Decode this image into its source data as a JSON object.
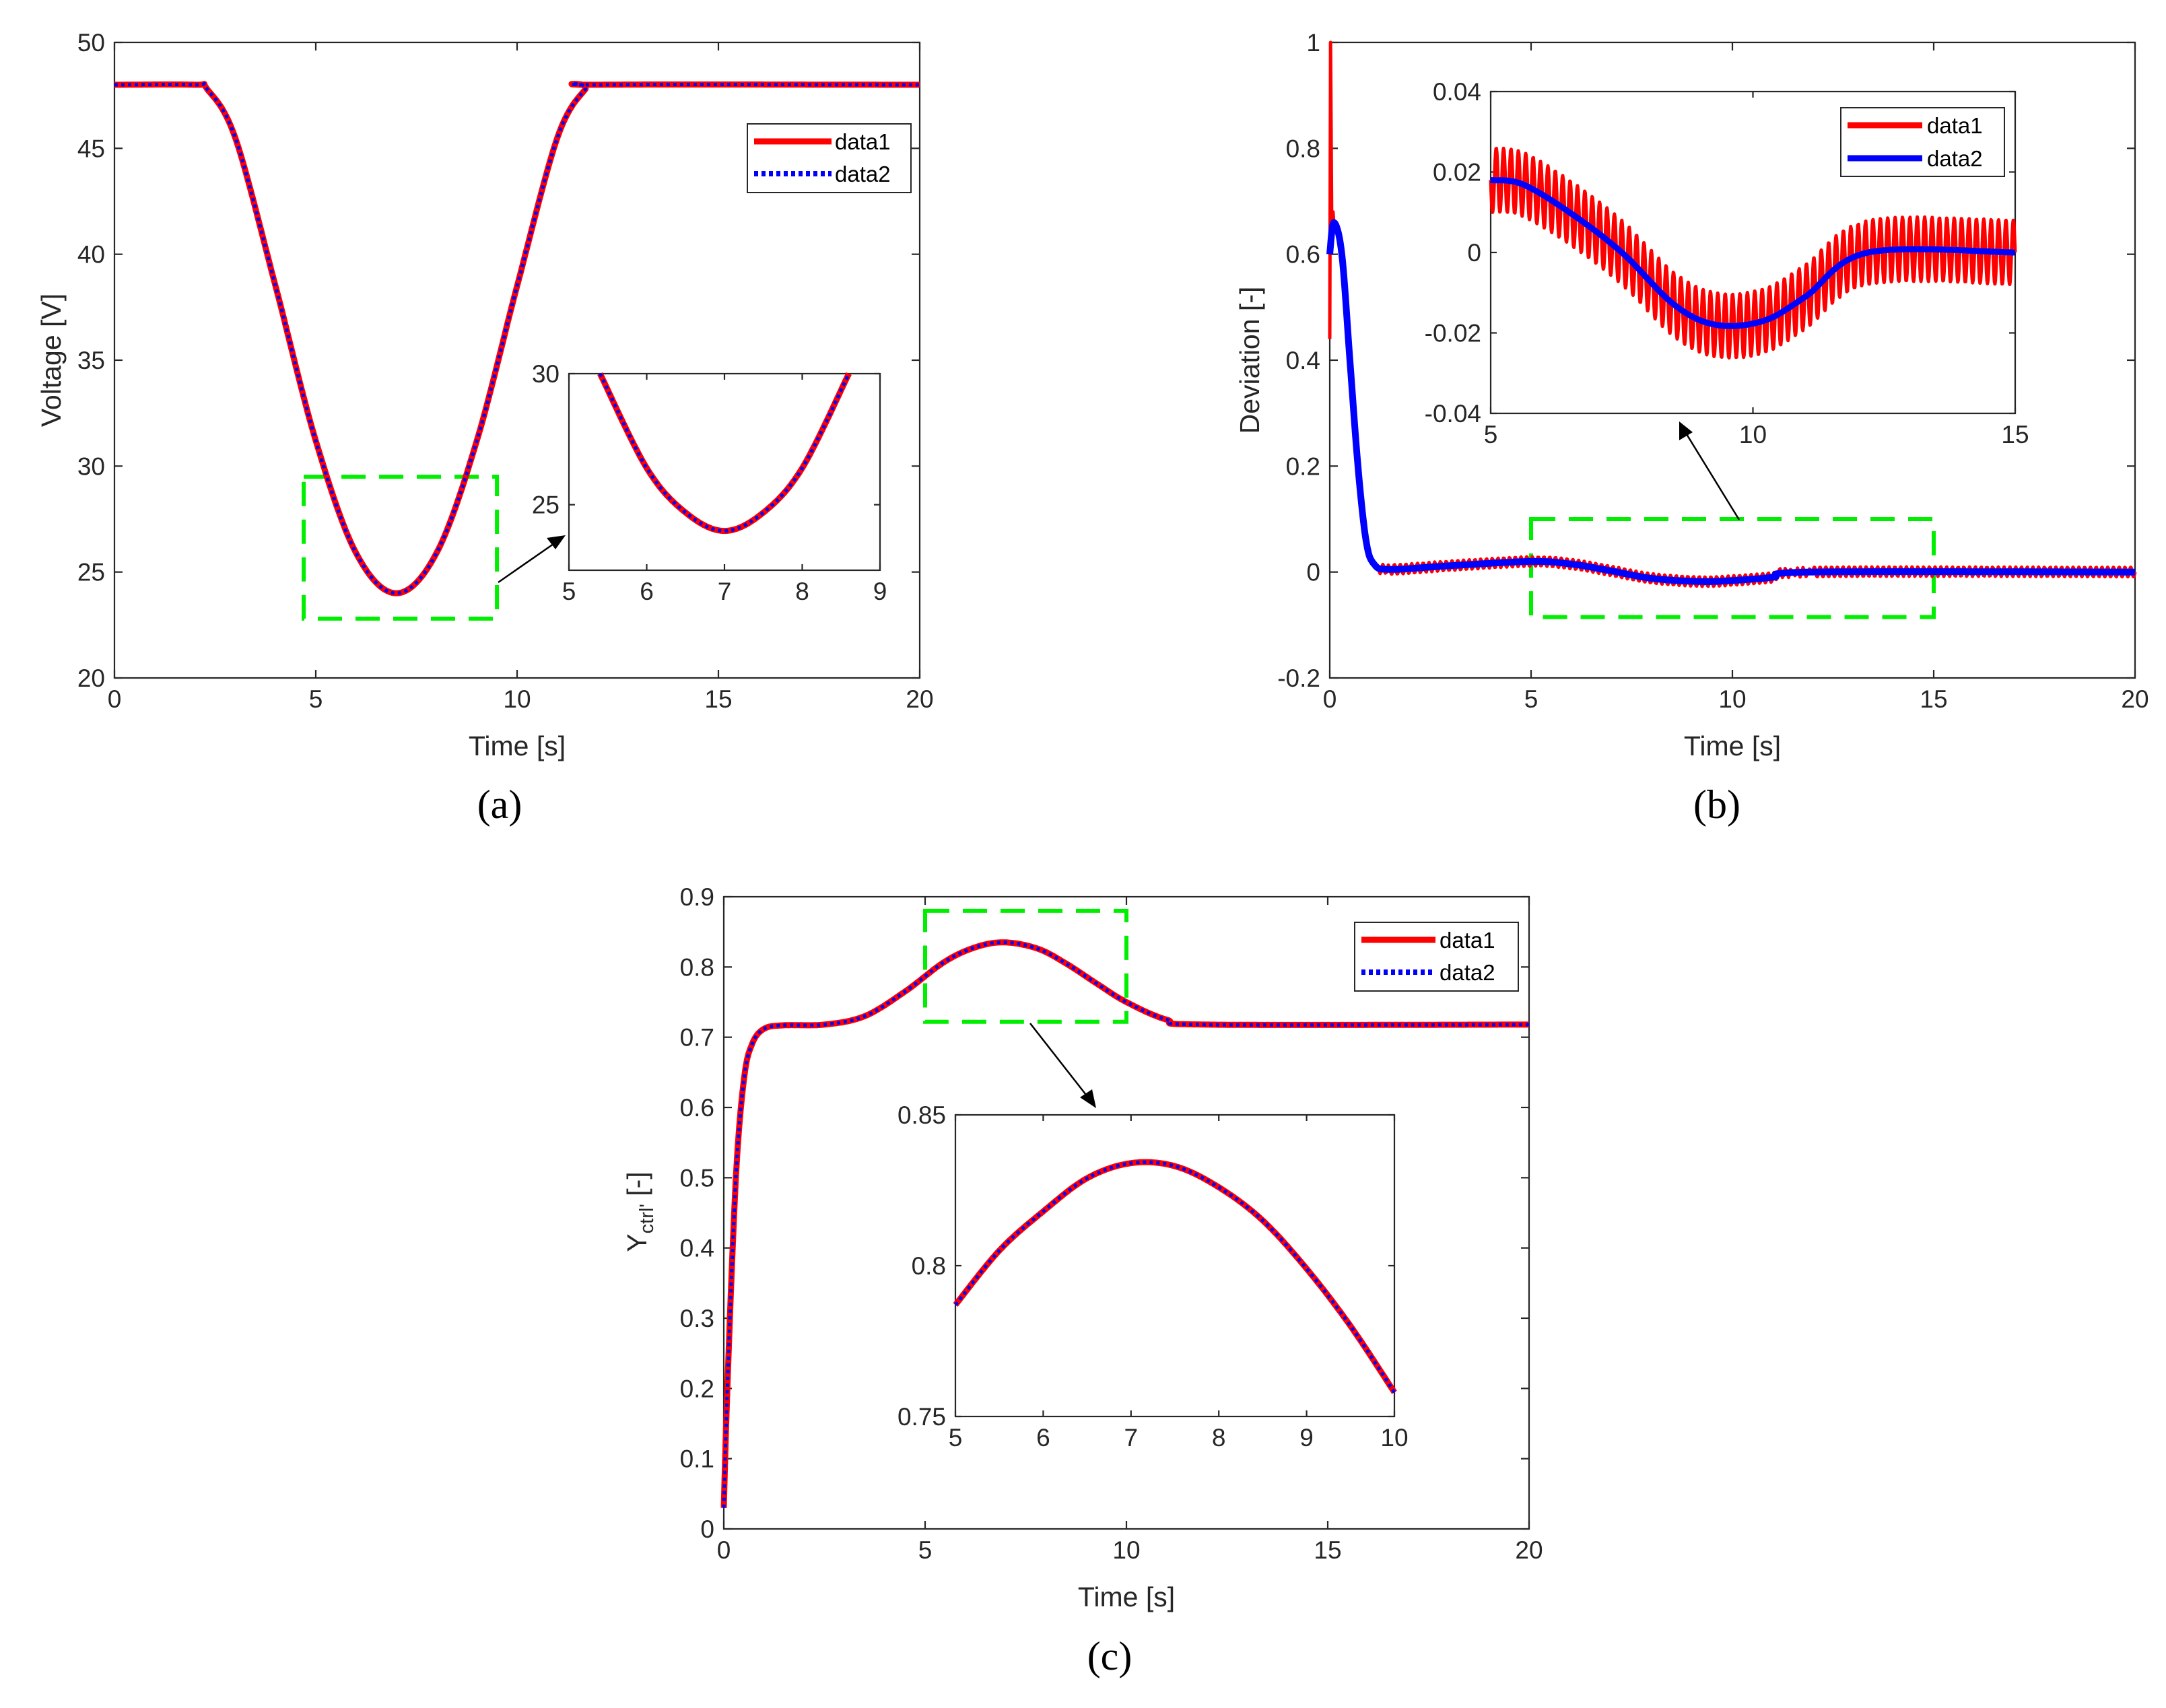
{
  "colors": {
    "data1": "#ff0000",
    "data2": "#0000ff",
    "zoom_box": "#00ee00",
    "axes": "#262626"
  },
  "chart_data": [
    {
      "id": "a",
      "caption": "(a)",
      "type": "line",
      "xlabel": "Time [s]",
      "ylabel": "Voltage [V]",
      "xlim": [
        0,
        20
      ],
      "ylim": [
        20,
        50
      ],
      "xticks": [
        "0",
        "5",
        "10",
        "15",
        "20"
      ],
      "yticks": [
        "20",
        "25",
        "30",
        "35",
        "40",
        "45",
        "50"
      ],
      "legend": [
        "data1",
        "data2"
      ],
      "legend_position": "top-right",
      "series": [
        {
          "name": "data1",
          "style": "solid"
        },
        {
          "name": "data2",
          "style": "dotted"
        }
      ],
      "curve_points": [
        [
          0,
          48
        ],
        [
          2,
          48
        ],
        [
          2.3,
          47.8
        ],
        [
          3,
          45.5
        ],
        [
          4,
          38.5
        ],
        [
          5,
          31.2
        ],
        [
          6,
          25.9
        ],
        [
          7,
          24
        ],
        [
          8,
          25.9
        ],
        [
          9,
          31.2
        ],
        [
          10,
          38.5
        ],
        [
          11,
          45.5
        ],
        [
          11.7,
          47.8
        ],
        [
          12,
          48
        ],
        [
          20,
          48
        ]
      ],
      "zoom_box": {
        "x": [
          4.7,
          9.5
        ],
        "y": [
          22.8,
          29.5
        ]
      },
      "inset": {
        "xlim": [
          5,
          9
        ],
        "ylim": [
          22.5,
          30
        ],
        "xticks": [
          "5",
          "6",
          "7",
          "8",
          "9"
        ],
        "yticks": [
          "25",
          "30"
        ],
        "curve_points": [
          [
            5.4,
            30
          ],
          [
            6,
            26.4
          ],
          [
            6.5,
            24.7
          ],
          [
            7,
            24
          ],
          [
            7.5,
            24.7
          ],
          [
            8,
            26.4
          ],
          [
            8.6,
            30
          ]
        ]
      }
    },
    {
      "id": "b",
      "caption": "(b)",
      "type": "line",
      "xlabel": "Time [s]",
      "ylabel": "Deviation [-]",
      "xlim": [
        0,
        20
      ],
      "ylim": [
        -0.2,
        1
      ],
      "xticks": [
        "0",
        "5",
        "10",
        "15",
        "20"
      ],
      "yticks": [
        "-0.2",
        "0",
        "0.2",
        "0.4",
        "0.6",
        "0.8",
        "1"
      ],
      "legend": [
        "data1",
        "data2"
      ],
      "legend_position": "inset top-right",
      "series": [
        {
          "name": "data1",
          "style": "oscillating"
        },
        {
          "name": "data2",
          "style": "solid"
        }
      ],
      "curve_points": [
        [
          0,
          0.6
        ],
        [
          0.1,
          0.66
        ],
        [
          0.3,
          0.6
        ],
        [
          0.5,
          0.4
        ],
        [
          0.7,
          0.2
        ],
        [
          0.9,
          0.06
        ],
        [
          1.1,
          0.015
        ],
        [
          1.5,
          0.005
        ],
        [
          3,
          0.012
        ],
        [
          5,
          0.02
        ],
        [
          6,
          0.015
        ],
        [
          7,
          0.002
        ],
        [
          8,
          -0.012
        ],
        [
          9.2,
          -0.018
        ],
        [
          10,
          -0.016
        ],
        [
          11,
          -0.01
        ],
        [
          12,
          0
        ],
        [
          20,
          0
        ]
      ],
      "data1_extras": {
        "spike_max": 1,
        "spike_min": 0.44,
        "oscillation_amplitude": 0.009
      },
      "zoom_box": {
        "x": [
          5,
          15
        ],
        "y": [
          -0.085,
          0.1
        ]
      },
      "inset": {
        "xlim": [
          5,
          15
        ],
        "ylim": [
          -0.04,
          0.04
        ],
        "xticks": [
          "5",
          "10",
          "15"
        ],
        "yticks": [
          "-0.04",
          "-0.02",
          "0",
          "0.02",
          "0.04"
        ],
        "curve_points": [
          [
            5,
            0.018
          ],
          [
            5.6,
            0.017
          ],
          [
            6.5,
            0.01
          ],
          [
            7.5,
            0
          ],
          [
            8.5,
            -0.013
          ],
          [
            9.3,
            -0.018
          ],
          [
            10.2,
            -0.017
          ],
          [
            11,
            -0.011
          ],
          [
            12.2,
            0
          ],
          [
            15,
            0
          ]
        ],
        "oscillation_amplitude": 0.008
      }
    },
    {
      "id": "c",
      "caption": "(c)",
      "type": "line",
      "xlabel": "Time [s]",
      "ylabel_main": "Y",
      "ylabel_sub": "ctrl'",
      "ylabel_rest": " [-]",
      "xlim": [
        0,
        20
      ],
      "ylim": [
        0,
        0.9
      ],
      "xticks": [
        "0",
        "5",
        "10",
        "15",
        "20"
      ],
      "yticks": [
        "0",
        "0.1",
        "0.2",
        "0.3",
        "0.4",
        "0.5",
        "0.6",
        "0.7",
        "0.8",
        "0.9"
      ],
      "legend": [
        "data1",
        "data2"
      ],
      "legend_position": "top-right",
      "series": [
        {
          "name": "data1",
          "style": "solid"
        },
        {
          "name": "data2",
          "style": "dotted"
        }
      ],
      "curve_points": [
        [
          0,
          0.03
        ],
        [
          0.1,
          0.22
        ],
        [
          0.3,
          0.5
        ],
        [
          0.5,
          0.64
        ],
        [
          0.7,
          0.69
        ],
        [
          1,
          0.712
        ],
        [
          1.5,
          0.717
        ],
        [
          2.5,
          0.718
        ],
        [
          3.5,
          0.73
        ],
        [
          4.5,
          0.765
        ],
        [
          5.5,
          0.808
        ],
        [
          6.3,
          0.829
        ],
        [
          7,
          0.835
        ],
        [
          7.8,
          0.826
        ],
        [
          8.5,
          0.805
        ],
        [
          9.3,
          0.775
        ],
        [
          10,
          0.75
        ],
        [
          11,
          0.725
        ],
        [
          12,
          0.718
        ],
        [
          20,
          0.718
        ]
      ],
      "zoom_box": {
        "x": [
          5,
          10
        ],
        "y": [
          0.722,
          0.88
        ]
      },
      "inset": {
        "xlim": [
          5,
          10
        ],
        "ylim": [
          0.75,
          0.85
        ],
        "xticks": [
          "5",
          "6",
          "7",
          "8",
          "9",
          "10"
        ],
        "yticks": [
          "0.75",
          "0.8",
          "0.85"
        ],
        "curve_points": [
          [
            5,
            0.787
          ],
          [
            5.5,
            0.805
          ],
          [
            6,
            0.818
          ],
          [
            6.5,
            0.829
          ],
          [
            7,
            0.834
          ],
          [
            7.5,
            0.833
          ],
          [
            8,
            0.826
          ],
          [
            8.5,
            0.815
          ],
          [
            9,
            0.799
          ],
          [
            9.5,
            0.78
          ],
          [
            10,
            0.758
          ]
        ]
      }
    }
  ]
}
